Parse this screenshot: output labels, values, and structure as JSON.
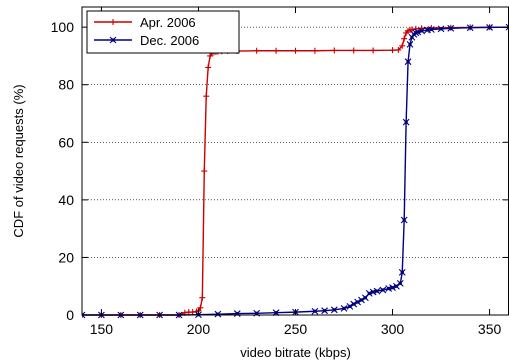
{
  "chart_data": {
    "type": "line",
    "title": "",
    "xlabel": "video bitrate (kbps)",
    "ylabel": "CDF of video requests (%)",
    "xlim": [
      140,
      360
    ],
    "ylim": [
      0,
      107
    ],
    "x_ticks": [
      150,
      200,
      250,
      300,
      350
    ],
    "y_ticks": [
      0,
      20,
      40,
      60,
      80,
      100
    ],
    "grid": "horizontal dotted",
    "legend_position": "top-left",
    "series": [
      {
        "name": "Apr. 2006",
        "color": "#cc0000",
        "marker": "plus",
        "x": [
          140,
          150,
          160,
          170,
          180,
          190,
          193,
          195,
          197,
          199,
          200,
          201,
          202,
          203,
          204,
          205,
          206,
          207,
          208,
          209,
          210,
          212,
          215,
          220,
          230,
          240,
          250,
          260,
          270,
          280,
          290,
          300,
          303,
          305,
          306,
          307,
          308,
          309,
          310,
          312,
          315,
          320,
          330,
          340,
          350,
          360
        ],
        "y": [
          0,
          0,
          0,
          0,
          0,
          0,
          0.8,
          1,
          1,
          1.2,
          1.5,
          2.5,
          6,
          50,
          76,
          86,
          90,
          91,
          91.2,
          91.4,
          91.5,
          91.6,
          91.7,
          91.7,
          91.8,
          91.8,
          91.8,
          91.8,
          91.9,
          91.9,
          91.9,
          92,
          92.1,
          93.5,
          96,
          98,
          98.7,
          99,
          99.2,
          99.4,
          99.6,
          99.7,
          99.8,
          99.9,
          100,
          100
        ]
      },
      {
        "name": "Dec. 2006",
        "color": "#000080",
        "marker": "x",
        "x": [
          140,
          150,
          160,
          170,
          180,
          190,
          200,
          210,
          220,
          230,
          240,
          250,
          260,
          265,
          270,
          275,
          278,
          280,
          282,
          284,
          286,
          288,
          290,
          292,
          295,
          298,
          300,
          302,
          304,
          305,
          306,
          307,
          308,
          309,
          310,
          311,
          312,
          313,
          315,
          318,
          320,
          325,
          330,
          340,
          350,
          360
        ],
        "y": [
          0,
          0,
          0,
          0,
          0,
          0,
          0.1,
          0.3,
          0.5,
          0.6,
          0.8,
          1,
          1.3,
          1.5,
          1.8,
          2.3,
          3,
          3.8,
          4.5,
          5.2,
          6,
          7.5,
          8,
          8.3,
          8.7,
          9.2,
          9.5,
          10,
          11,
          14.8,
          33,
          67,
          88,
          94,
          96.5,
          97.5,
          98,
          98.3,
          98.7,
          99,
          99.2,
          99.4,
          99.6,
          99.8,
          99.9,
          100
        ]
      }
    ]
  }
}
